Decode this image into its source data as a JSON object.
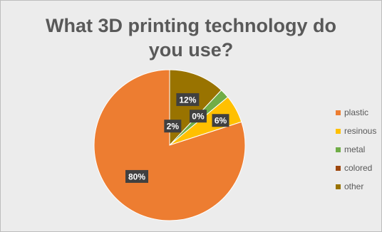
{
  "chart_data": {
    "type": "pie",
    "title": "What 3D printing technology do you use?",
    "categories": [
      "plastic",
      "resinous",
      "metal",
      "colored",
      "other"
    ],
    "values": [
      80,
      6,
      2,
      0,
      12
    ],
    "data_labels": [
      "80%",
      "6%",
      "2%",
      "0%",
      "12%"
    ],
    "colors": [
      "#ED7D31",
      "#FFC000",
      "#70AD47",
      "#9E480E",
      "#997300"
    ],
    "legend_position": "right"
  }
}
